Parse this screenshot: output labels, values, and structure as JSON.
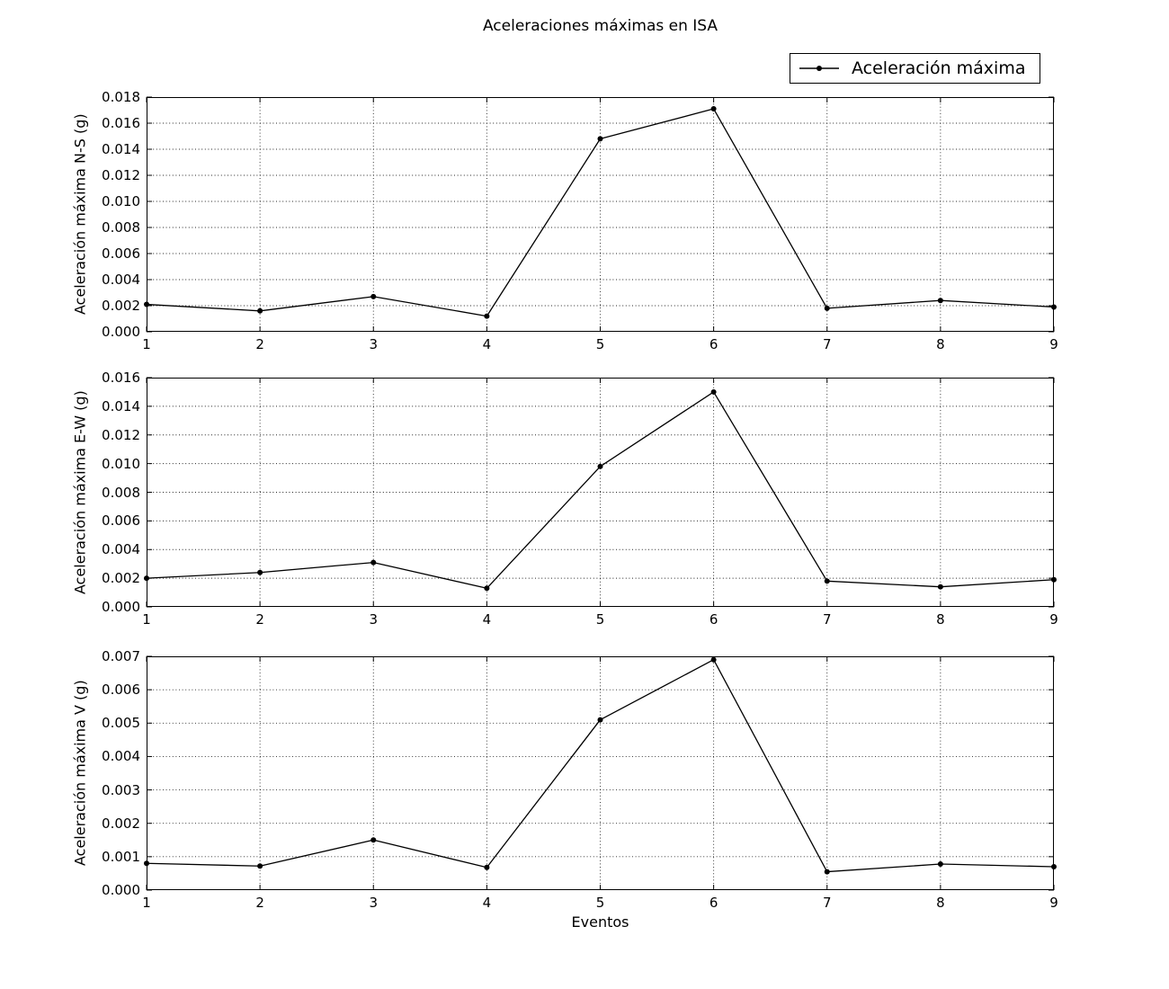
{
  "title": "Aceleraciones máximas en ISA",
  "xlabel": "Eventos",
  "legend": {
    "label": "Aceleración máxima",
    "position": "upper right, above first axes"
  },
  "colors": {
    "line": "#000000",
    "marker": "#000000",
    "grid": "#000000",
    "background": "#ffffff",
    "frame": "#000000"
  },
  "chart_data": [
    {
      "type": "line",
      "name": "Aceleración máxima N-S",
      "ylabel": "Aceleración máxima N-S (g)",
      "x": [
        1,
        2,
        3,
        4,
        5,
        6,
        7,
        8,
        9
      ],
      "y": [
        0.0021,
        0.0016,
        0.0027,
        0.0012,
        0.0148,
        0.0171,
        0.0018,
        0.0024,
        0.0019
      ],
      "xlim": [
        1,
        9
      ],
      "ylim": [
        0,
        0.018
      ],
      "yticks": [
        "0.000",
        "0.002",
        "0.004",
        "0.006",
        "0.008",
        "0.010",
        "0.012",
        "0.014",
        "0.016",
        "0.018"
      ],
      "xticks": [
        "1",
        "2",
        "3",
        "4",
        "5",
        "6",
        "7",
        "8",
        "9"
      ],
      "grid": true,
      "marker": "dot",
      "line_color": "#000000"
    },
    {
      "type": "line",
      "name": "Aceleración máxima E-W",
      "ylabel": "Aceleración máxima E-W (g)",
      "x": [
        1,
        2,
        3,
        4,
        5,
        6,
        7,
        8,
        9
      ],
      "y": [
        0.002,
        0.0024,
        0.0031,
        0.0013,
        0.0098,
        0.015,
        0.0018,
        0.0014,
        0.0019
      ],
      "xlim": [
        1,
        9
      ],
      "ylim": [
        0,
        0.016
      ],
      "yticks": [
        "0.000",
        "0.002",
        "0.004",
        "0.006",
        "0.008",
        "0.010",
        "0.012",
        "0.014",
        "0.016"
      ],
      "xticks": [
        "1",
        "2",
        "3",
        "4",
        "5",
        "6",
        "7",
        "8",
        "9"
      ],
      "grid": true,
      "marker": "dot",
      "line_color": "#000000"
    },
    {
      "type": "line",
      "name": "Aceleración máxima V",
      "ylabel": "Aceleración máxima V (g)",
      "x": [
        1,
        2,
        3,
        4,
        5,
        6,
        7,
        8,
        9
      ],
      "y": [
        0.0008,
        0.00072,
        0.0015,
        0.00068,
        0.0051,
        0.0069,
        0.00055,
        0.00078,
        0.0007
      ],
      "xlim": [
        1,
        9
      ],
      "ylim": [
        0,
        0.007
      ],
      "yticks": [
        "0.000",
        "0.001",
        "0.002",
        "0.003",
        "0.004",
        "0.005",
        "0.006",
        "0.007"
      ],
      "xticks": [
        "1",
        "2",
        "3",
        "4",
        "5",
        "6",
        "7",
        "8",
        "9"
      ],
      "grid": true,
      "marker": "dot",
      "line_color": "#000000"
    }
  ]
}
